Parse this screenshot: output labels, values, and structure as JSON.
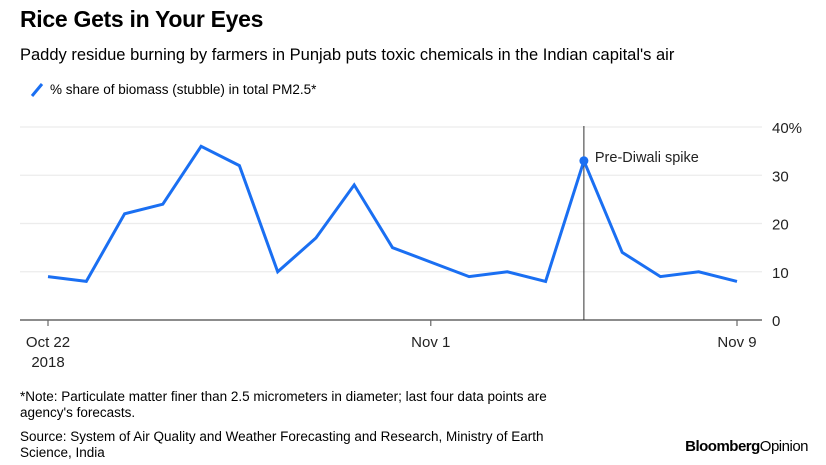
{
  "title": "Rice Gets in Your Eyes",
  "subtitle": "Paddy residue burning by farmers in Punjab puts toxic chemicals in the Indian capital's air",
  "notes": [
    "*Note: Particulate matter finer than 2.5 micrometers in diameter; last four data points are",
    "agency's forecasts.",
    "Source: System of Air Quality and Weather Forecasting and Research, Ministry of Earth",
    "Science, India"
  ],
  "logo": {
    "brand": "Bloomberg",
    "section": "Opinion"
  },
  "chart_data": {
    "type": "line",
    "title": "Rice Gets in Your Eyes",
    "xlabel": "",
    "ylabel": "",
    "x": [
      "2018-10-22",
      "2018-10-23",
      "2018-10-24",
      "2018-10-25",
      "2018-10-26",
      "2018-10-27",
      "2018-10-28",
      "2018-10-29",
      "2018-10-30",
      "2018-10-31",
      "2018-11-01",
      "2018-11-02",
      "2018-11-03",
      "2018-11-04",
      "2018-11-05",
      "2018-11-06",
      "2018-11-07",
      "2018-11-08",
      "2018-11-09"
    ],
    "series": [
      {
        "name": "% share of biomass (stubble) in total PM2.5*",
        "color": "#1a6ff2",
        "values": [
          9,
          8,
          22,
          24,
          36,
          32,
          10,
          17,
          28,
          15,
          12,
          9,
          10,
          8,
          33,
          14,
          9,
          10,
          8
        ]
      }
    ],
    "ylim": [
      0,
      40
    ],
    "yticks": [
      0,
      10,
      20,
      30,
      40
    ],
    "ytick_labels": [
      "0",
      "10",
      "20",
      "30",
      "40%"
    ],
    "xticks": [
      {
        "date": "2018-10-22",
        "label": "Oct 22",
        "sublabel": "2018"
      },
      {
        "date": "2018-11-01",
        "label": "Nov 1"
      },
      {
        "date": "2018-11-09",
        "label": "Nov 9"
      }
    ],
    "y_axis_side": "right",
    "grid": true,
    "legend_position": "top-left",
    "annotation": {
      "date": "2018-11-05",
      "value": 33,
      "label": "Pre-Diwali spike"
    }
  }
}
